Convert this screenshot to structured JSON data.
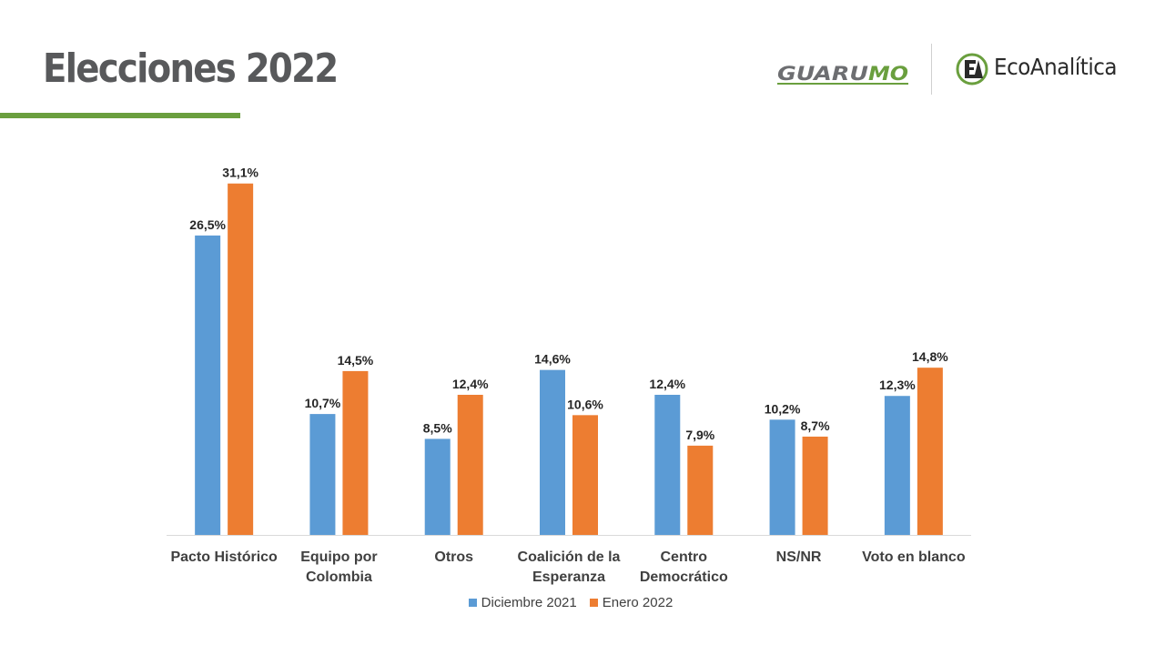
{
  "header": {
    "title": "Elecciones 2022",
    "logo_guarumo_text": "GUARUMO",
    "logo_eco_text": "EcoAnalítica",
    "accent_color": "#6a9f3e"
  },
  "chart_data": {
    "type": "bar",
    "categories": [
      "Pacto Histórico",
      "Equipo por Colombia",
      "Otros",
      "Coalición de la Esperanza",
      "Centro Democrático",
      "NS/NR",
      "Voto en blanco"
    ],
    "category_lines": [
      [
        "Pacto Histórico"
      ],
      [
        "Equipo por",
        "Colombia"
      ],
      [
        "Otros"
      ],
      [
        "Coalición de la",
        "Esperanza"
      ],
      [
        "Centro",
        "Democrático"
      ],
      [
        "NS/NR"
      ],
      [
        "Voto en blanco"
      ]
    ],
    "series": [
      {
        "name": "Diciembre 2021",
        "color": "#5b9bd5",
        "values": [
          26.5,
          10.7,
          8.5,
          14.6,
          12.4,
          10.2,
          12.3
        ],
        "labels": [
          "26,5%",
          "10,7%",
          "8,5%",
          "14,6%",
          "12,4%",
          "10,2%",
          "12,3%"
        ]
      },
      {
        "name": "Enero 2022",
        "color": "#ed7d31",
        "values": [
          31.1,
          14.5,
          12.4,
          10.6,
          7.9,
          8.7,
          14.8
        ],
        "labels": [
          "31,1%",
          "14,5%",
          "12,4%",
          "10,6%",
          "7,9%",
          "8,7%",
          "14,8%"
        ]
      }
    ],
    "ylim": [
      0,
      35
    ],
    "legend_position": "bottom",
    "grid": false
  }
}
